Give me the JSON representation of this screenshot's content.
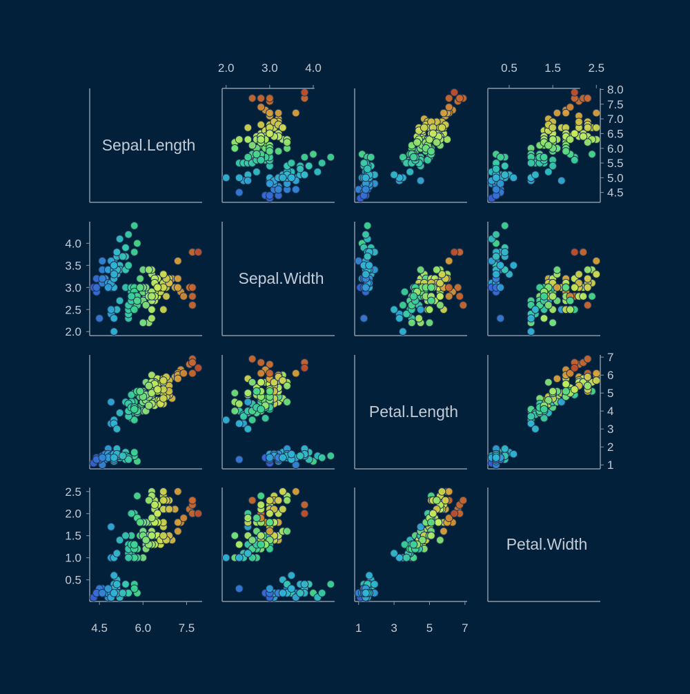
{
  "chart_data": {
    "type": "scatter-matrix",
    "variables": [
      "Sepal.Length",
      "Sepal.Width",
      "Petal.Length",
      "Petal.Width"
    ],
    "ranges": {
      "Sepal.Length": [
        4.3,
        7.9
      ],
      "Sepal.Width": [
        2.0,
        4.4
      ],
      "Petal.Length": [
        1.0,
        6.9
      ],
      "Petal.Width": [
        0.1,
        2.5
      ]
    },
    "ticks": {
      "Sepal.Length": {
        "left": [],
        "right": [
          "4.5",
          "5.0",
          "5.5",
          "6.0",
          "6.5",
          "7.0",
          "7.5",
          "8.0"
        ],
        "top": [],
        "bottom": [
          "4.5",
          "6.0",
          "7.5"
        ]
      },
      "Sepal.Width": {
        "left": [
          "2.0",
          "2.5",
          "3.0",
          "3.5",
          "4.0"
        ],
        "right": [],
        "top": [
          "2.0",
          "3.0",
          "4.0"
        ],
        "bottom": []
      },
      "Petal.Length": {
        "left": [],
        "right": [
          "1",
          "2",
          "3",
          "4",
          "5",
          "6",
          "7"
        ],
        "top": [],
        "bottom": [
          "1",
          "3",
          "5",
          "7"
        ]
      },
      "Petal.Width": {
        "left": [
          "0.5",
          "1.0",
          "1.5",
          "2.0",
          "2.5"
        ],
        "right": [],
        "top": [
          "0.5",
          "1.5",
          "2.5"
        ],
        "bottom": []
      }
    },
    "color_by": "Sepal.Length",
    "colorscale": [
      "#3a62d8",
      "#2fb6d6",
      "#3fd58f",
      "#c9ee5a",
      "#d9a23a",
      "#c2512c"
    ],
    "point_edge_color": "#1f3550",
    "axis_color": "#8b98a8",
    "text_color": "#c3ccd6",
    "background": "#03203a",
    "grid": false,
    "points": [
      [
        5.1,
        3.5,
        1.4,
        0.2
      ],
      [
        4.9,
        3.0,
        1.4,
        0.2
      ],
      [
        4.7,
        3.2,
        1.3,
        0.2
      ],
      [
        4.6,
        3.1,
        1.5,
        0.2
      ],
      [
        5.0,
        3.6,
        1.4,
        0.2
      ],
      [
        5.4,
        3.9,
        1.7,
        0.4
      ],
      [
        4.6,
        3.4,
        1.4,
        0.3
      ],
      [
        5.0,
        3.4,
        1.5,
        0.2
      ],
      [
        4.4,
        2.9,
        1.4,
        0.2
      ],
      [
        4.9,
        3.1,
        1.5,
        0.1
      ],
      [
        5.4,
        3.7,
        1.5,
        0.2
      ],
      [
        4.8,
        3.4,
        1.6,
        0.2
      ],
      [
        4.8,
        3.0,
        1.4,
        0.1
      ],
      [
        4.3,
        3.0,
        1.1,
        0.1
      ],
      [
        5.8,
        4.0,
        1.2,
        0.2
      ],
      [
        5.7,
        4.4,
        1.5,
        0.4
      ],
      [
        5.4,
        3.9,
        1.3,
        0.4
      ],
      [
        5.1,
        3.5,
        1.4,
        0.3
      ],
      [
        5.7,
        3.8,
        1.7,
        0.3
      ],
      [
        5.1,
        3.8,
        1.5,
        0.3
      ],
      [
        5.4,
        3.4,
        1.7,
        0.2
      ],
      [
        5.1,
        3.7,
        1.5,
        0.4
      ],
      [
        4.6,
        3.6,
        1.0,
        0.2
      ],
      [
        5.1,
        3.3,
        1.7,
        0.5
      ],
      [
        4.8,
        3.4,
        1.9,
        0.2
      ],
      [
        5.0,
        3.0,
        1.6,
        0.2
      ],
      [
        5.0,
        3.4,
        1.6,
        0.4
      ],
      [
        5.2,
        3.5,
        1.5,
        0.2
      ],
      [
        5.2,
        3.4,
        1.4,
        0.2
      ],
      [
        4.7,
        3.2,
        1.6,
        0.2
      ],
      [
        4.8,
        3.1,
        1.6,
        0.2
      ],
      [
        5.4,
        3.4,
        1.5,
        0.4
      ],
      [
        5.2,
        4.1,
        1.5,
        0.1
      ],
      [
        5.5,
        4.2,
        1.4,
        0.2
      ],
      [
        4.9,
        3.1,
        1.5,
        0.2
      ],
      [
        5.0,
        3.2,
        1.2,
        0.2
      ],
      [
        5.5,
        3.5,
        1.3,
        0.2
      ],
      [
        4.9,
        3.6,
        1.4,
        0.1
      ],
      [
        4.4,
        3.0,
        1.3,
        0.2
      ],
      [
        5.1,
        3.4,
        1.5,
        0.2
      ],
      [
        5.0,
        3.5,
        1.3,
        0.3
      ],
      [
        4.5,
        2.3,
        1.3,
        0.3
      ],
      [
        4.4,
        3.2,
        1.3,
        0.2
      ],
      [
        5.0,
        3.5,
        1.6,
        0.6
      ],
      [
        5.1,
        3.8,
        1.9,
        0.4
      ],
      [
        4.8,
        3.0,
        1.4,
        0.3
      ],
      [
        5.1,
        3.8,
        1.6,
        0.2
      ],
      [
        4.6,
        3.2,
        1.4,
        0.2
      ],
      [
        5.3,
        3.7,
        1.5,
        0.2
      ],
      [
        5.0,
        3.3,
        1.4,
        0.2
      ],
      [
        7.0,
        3.2,
        4.7,
        1.4
      ],
      [
        6.4,
        3.2,
        4.5,
        1.5
      ],
      [
        6.9,
        3.1,
        4.9,
        1.5
      ],
      [
        5.5,
        2.3,
        4.0,
        1.3
      ],
      [
        6.5,
        2.8,
        4.6,
        1.5
      ],
      [
        5.7,
        2.8,
        4.5,
        1.3
      ],
      [
        6.3,
        3.3,
        4.7,
        1.6
      ],
      [
        4.9,
        2.4,
        3.3,
        1.0
      ],
      [
        6.6,
        2.9,
        4.6,
        1.3
      ],
      [
        5.2,
        2.7,
        3.9,
        1.4
      ],
      [
        5.0,
        2.0,
        3.5,
        1.0
      ],
      [
        5.9,
        3.0,
        4.2,
        1.5
      ],
      [
        6.0,
        2.2,
        4.0,
        1.0
      ],
      [
        6.1,
        2.9,
        4.7,
        1.4
      ],
      [
        5.6,
        2.9,
        3.6,
        1.3
      ],
      [
        6.7,
        3.1,
        4.4,
        1.4
      ],
      [
        5.6,
        3.0,
        4.5,
        1.5
      ],
      [
        5.8,
        2.7,
        4.1,
        1.0
      ],
      [
        6.2,
        2.2,
        4.5,
        1.5
      ],
      [
        5.6,
        2.5,
        3.9,
        1.1
      ],
      [
        5.9,
        3.2,
        4.8,
        1.8
      ],
      [
        6.1,
        2.8,
        4.0,
        1.3
      ],
      [
        6.3,
        2.5,
        4.9,
        1.5
      ],
      [
        6.1,
        2.8,
        4.7,
        1.2
      ],
      [
        6.4,
        2.9,
        4.3,
        1.3
      ],
      [
        6.6,
        3.0,
        4.4,
        1.4
      ],
      [
        6.8,
        2.8,
        4.8,
        1.4
      ],
      [
        6.7,
        3.0,
        5.0,
        1.7
      ],
      [
        6.0,
        2.9,
        4.5,
        1.5
      ],
      [
        5.7,
        2.6,
        3.5,
        1.0
      ],
      [
        5.5,
        2.4,
        3.8,
        1.1
      ],
      [
        5.5,
        2.4,
        3.7,
        1.0
      ],
      [
        5.8,
        2.7,
        3.9,
        1.2
      ],
      [
        6.0,
        2.7,
        5.1,
        1.6
      ],
      [
        5.4,
        3.0,
        4.5,
        1.5
      ],
      [
        6.0,
        3.4,
        4.5,
        1.6
      ],
      [
        6.7,
        3.1,
        4.7,
        1.5
      ],
      [
        6.3,
        2.3,
        4.4,
        1.3
      ],
      [
        5.6,
        3.0,
        4.1,
        1.3
      ],
      [
        5.5,
        2.5,
        4.0,
        1.3
      ],
      [
        5.5,
        2.6,
        4.4,
        1.2
      ],
      [
        6.1,
        3.0,
        4.6,
        1.4
      ],
      [
        5.8,
        2.6,
        4.0,
        1.2
      ],
      [
        5.0,
        2.3,
        3.3,
        1.0
      ],
      [
        5.6,
        2.7,
        4.2,
        1.3
      ],
      [
        5.7,
        3.0,
        4.2,
        1.2
      ],
      [
        5.7,
        2.9,
        4.2,
        1.3
      ],
      [
        6.2,
        2.9,
        4.3,
        1.3
      ],
      [
        5.1,
        2.5,
        3.0,
        1.1
      ],
      [
        5.7,
        2.8,
        4.1,
        1.3
      ],
      [
        6.3,
        3.3,
        6.0,
        2.5
      ],
      [
        5.8,
        2.7,
        5.1,
        1.9
      ],
      [
        7.1,
        3.0,
        5.9,
        2.1
      ],
      [
        6.3,
        2.9,
        5.6,
        1.8
      ],
      [
        6.5,
        3.0,
        5.8,
        2.2
      ],
      [
        7.6,
        3.0,
        6.6,
        2.1
      ],
      [
        4.9,
        2.5,
        4.5,
        1.7
      ],
      [
        7.3,
        2.9,
        6.3,
        1.8
      ],
      [
        6.7,
        2.5,
        5.8,
        1.8
      ],
      [
        7.2,
        3.6,
        6.1,
        2.5
      ],
      [
        6.5,
        3.2,
        5.1,
        2.0
      ],
      [
        6.4,
        2.7,
        5.3,
        1.9
      ],
      [
        6.8,
        3.0,
        5.5,
        2.1
      ],
      [
        5.7,
        2.5,
        5.0,
        2.0
      ],
      [
        5.8,
        2.8,
        5.1,
        2.4
      ],
      [
        6.4,
        3.2,
        5.3,
        2.3
      ],
      [
        6.5,
        3.0,
        5.5,
        1.8
      ],
      [
        7.7,
        3.8,
        6.7,
        2.2
      ],
      [
        7.7,
        2.6,
        6.9,
        2.3
      ],
      [
        6.0,
        2.2,
        5.0,
        1.5
      ],
      [
        6.9,
        3.2,
        5.7,
        2.3
      ],
      [
        5.6,
        2.8,
        4.9,
        2.0
      ],
      [
        7.7,
        2.8,
        6.7,
        2.0
      ],
      [
        6.3,
        2.7,
        4.9,
        1.8
      ],
      [
        6.7,
        3.3,
        5.7,
        2.1
      ],
      [
        7.2,
        3.2,
        6.0,
        1.8
      ],
      [
        6.2,
        2.8,
        4.8,
        1.8
      ],
      [
        6.1,
        3.0,
        4.9,
        1.8
      ],
      [
        6.4,
        2.8,
        5.6,
        2.1
      ],
      [
        7.2,
        3.0,
        5.8,
        1.6
      ],
      [
        7.4,
        2.8,
        6.1,
        1.9
      ],
      [
        7.9,
        3.8,
        6.4,
        2.0
      ],
      [
        6.4,
        2.8,
        5.6,
        2.2
      ],
      [
        6.3,
        2.8,
        5.1,
        1.5
      ],
      [
        6.1,
        2.6,
        5.6,
        1.4
      ],
      [
        7.7,
        3.0,
        6.1,
        2.3
      ],
      [
        6.3,
        3.4,
        5.6,
        2.4
      ],
      [
        6.4,
        3.1,
        5.5,
        1.8
      ],
      [
        6.0,
        3.0,
        4.8,
        1.8
      ],
      [
        6.9,
        3.1,
        5.4,
        2.1
      ],
      [
        6.7,
        3.1,
        5.6,
        2.4
      ],
      [
        6.9,
        3.1,
        5.1,
        2.3
      ],
      [
        5.8,
        2.7,
        5.1,
        1.9
      ],
      [
        6.8,
        3.2,
        5.9,
        2.3
      ],
      [
        6.7,
        3.3,
        5.7,
        2.5
      ],
      [
        6.7,
        3.0,
        5.2,
        2.3
      ],
      [
        6.3,
        2.5,
        5.0,
        1.9
      ],
      [
        6.5,
        3.0,
        5.2,
        2.0
      ],
      [
        6.2,
        3.4,
        5.4,
        2.3
      ],
      [
        5.9,
        3.0,
        5.1,
        1.8
      ]
    ]
  }
}
